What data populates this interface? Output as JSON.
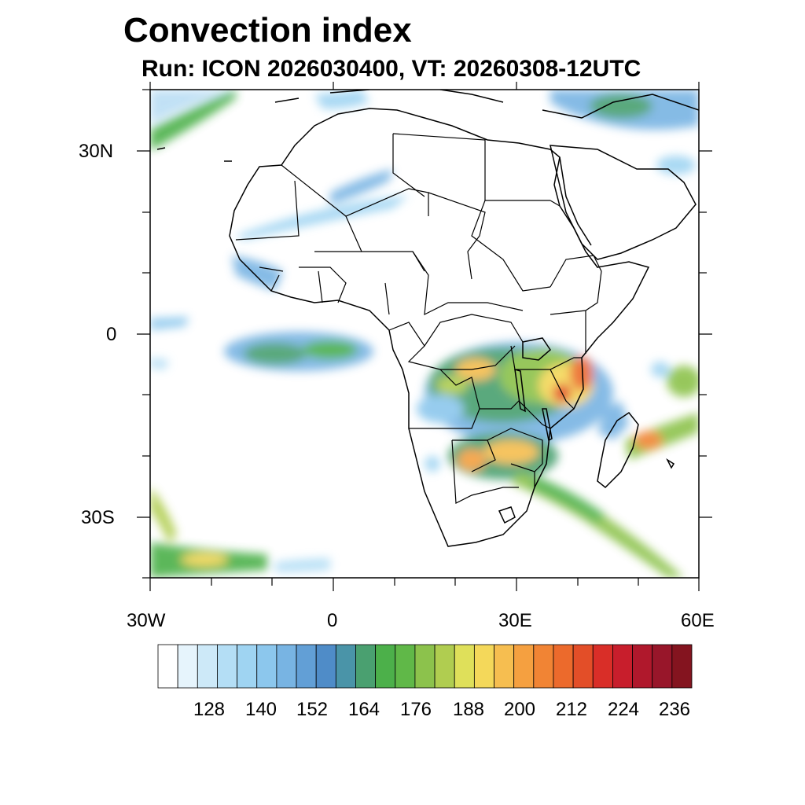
{
  "title": "Convection index",
  "subtitle": "Run: ICON 2026030400,  VT: 20260308-12UTC",
  "axes": {
    "lat_labels": [
      "30N",
      "0",
      "30S"
    ],
    "lon_labels": [
      "30W",
      "0",
      "30E",
      "60E"
    ]
  },
  "colorbar": {
    "labels": [
      "128",
      "140",
      "152",
      "164",
      "176",
      "188",
      "200",
      "212",
      "224",
      "236"
    ],
    "colors": [
      "#ffffff",
      "#e6f4fc",
      "#cde9f8",
      "#b4def5",
      "#9fd4f2",
      "#8cc7ed",
      "#78b4e3",
      "#629fd6",
      "#4f8cc8",
      "#4a94a8",
      "#4aa070",
      "#4cb04a",
      "#60b848",
      "#8cc24c",
      "#b0cd50",
      "#dfe05a",
      "#f4d85a",
      "#f6be50",
      "#f5a040",
      "#f18434",
      "#ec6a2c",
      "#e34e28",
      "#d92e28",
      "#c81e2c",
      "#b0182c",
      "#98162a",
      "#84141f"
    ]
  }
}
